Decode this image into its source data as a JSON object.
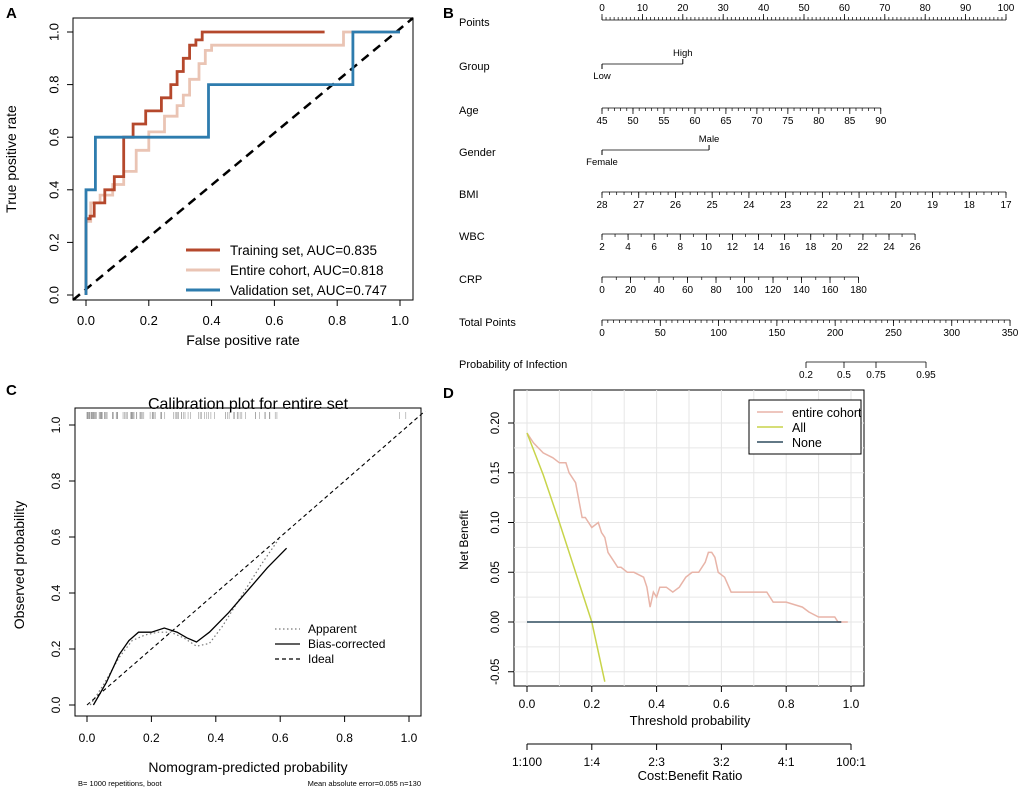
{
  "panels": {
    "a": {
      "label": "A",
      "chart_data": {
        "type": "line",
        "xlabel": "False positive rate",
        "ylabel": "True positive rate",
        "xlim": [
          0,
          1
        ],
        "ylim": [
          0,
          1
        ],
        "xticks": [
          "0.0",
          "0.2",
          "0.4",
          "0.6",
          "0.8",
          "1.0"
        ],
        "yticks": [
          "0.0",
          "0.2",
          "0.4",
          "0.6",
          "0.8",
          "1.0"
        ],
        "legend_position": "bottom-right",
        "series": [
          {
            "name": "Training set, AUC=0.835",
            "color": "#b5482c",
            "x": [
              0,
              0,
              0.013,
              0.013,
              0.026,
              0.026,
              0.06,
              0.06,
              0.09,
              0.09,
              0.12,
              0.12,
              0.15,
              0.15,
              0.19,
              0.19,
              0.24,
              0.24,
              0.27,
              0.27,
              0.29,
              0.29,
              0.31,
              0.31,
              0.33,
              0.33,
              0.35,
              0.35,
              0.37,
              0.37,
              0.39,
              0.39,
              0.76,
              0.76
            ],
            "y": [
              0,
              0.29,
              0.29,
              0.3,
              0.3,
              0.35,
              0.35,
              0.4,
              0.4,
              0.45,
              0.45,
              0.6,
              0.6,
              0.65,
              0.65,
              0.7,
              0.7,
              0.75,
              0.75,
              0.8,
              0.8,
              0.85,
              0.85,
              0.9,
              0.9,
              0.95,
              0.95,
              0.97,
              0.97,
              1.0,
              1.0,
              1.0,
              1.0,
              1.0
            ]
          },
          {
            "name": "Entire cohort, AUC=0.818",
            "color": "#eac4b4",
            "x": [
              0,
              0,
              0.015,
              0.015,
              0.045,
              0.045,
              0.085,
              0.085,
              0.12,
              0.12,
              0.16,
              0.16,
              0.2,
              0.2,
              0.25,
              0.25,
              0.29,
              0.29,
              0.31,
              0.31,
              0.33,
              0.33,
              0.36,
              0.36,
              0.38,
              0.38,
              0.4,
              0.4,
              0.82,
              0.82,
              1.0
            ],
            "y": [
              0,
              0.28,
              0.28,
              0.35,
              0.35,
              0.38,
              0.38,
              0.42,
              0.42,
              0.47,
              0.47,
              0.55,
              0.55,
              0.62,
              0.62,
              0.68,
              0.68,
              0.72,
              0.72,
              0.76,
              0.76,
              0.82,
              0.82,
              0.88,
              0.88,
              0.93,
              0.93,
              0.95,
              0.95,
              1.0,
              1.0
            ]
          },
          {
            "name": "Validation set, AUC=0.747",
            "color": "#2e7cae",
            "x": [
              0,
              0,
              0.03,
              0.03,
              0.39,
              0.39,
              0.85,
              0.85,
              1.0
            ],
            "y": [
              0,
              0.4,
              0.4,
              0.6,
              0.6,
              0.8,
              0.8,
              1.0,
              1.0
            ]
          }
        ]
      }
    },
    "b": {
      "label": "B",
      "rows": [
        {
          "name": "Points",
          "ticks": [
            "0",
            "10",
            "20",
            "30",
            "40",
            "50",
            "60",
            "70",
            "80",
            "90",
            "100"
          ]
        },
        {
          "name": "Group",
          "levels": [
            "Low",
            "High"
          ]
        },
        {
          "name": "Age",
          "ticks": [
            "45",
            "50",
            "55",
            "60",
            "65",
            "70",
            "75",
            "80",
            "85",
            "90"
          ]
        },
        {
          "name": "Gender",
          "levels": [
            "Female",
            "Male"
          ]
        },
        {
          "name": "BMI",
          "ticks": [
            "28",
            "27",
            "26",
            "25",
            "24",
            "23",
            "22",
            "21",
            "20",
            "19",
            "18",
            "17"
          ]
        },
        {
          "name": "WBC",
          "ticks": [
            "2",
            "4",
            "6",
            "8",
            "10",
            "12",
            "14",
            "16",
            "18",
            "20",
            "22",
            "24",
            "26"
          ]
        },
        {
          "name": "CRP",
          "ticks": [
            "0",
            "20",
            "40",
            "60",
            "80",
            "100",
            "120",
            "140",
            "160",
            "180"
          ]
        },
        {
          "name": "Total Points",
          "ticks": [
            "0",
            "50",
            "100",
            "150",
            "200",
            "250",
            "300",
            "350"
          ]
        },
        {
          "name": "Probability of Infection",
          "ticks": [
            "0.2",
            "0.5",
            "0.75",
            "0.95"
          ]
        }
      ]
    },
    "c": {
      "label": "C",
      "chart_data": {
        "type": "line",
        "title": "Calibration plot for entire set",
        "xlabel": "Nomogram-predicted probability",
        "ylabel": "Observed probability",
        "xlim": [
          0,
          1
        ],
        "ylim": [
          0,
          1
        ],
        "xticks": [
          "0.0",
          "0.2",
          "0.4",
          "0.6",
          "0.8",
          "1.0"
        ],
        "yticks": [
          "0.0",
          "0.2",
          "0.4",
          "0.6",
          "0.8",
          "1.0"
        ],
        "legend_position": "bottom-right",
        "series": [
          {
            "name": "Apparent",
            "style": "dotted",
            "x": [
              0.01,
              0.05,
              0.1,
              0.14,
              0.18,
              0.22,
              0.26,
              0.3,
              0.34,
              0.38,
              0.42,
              0.48,
              0.54,
              0.6
            ],
            "y": [
              0.0,
              0.07,
              0.17,
              0.23,
              0.25,
              0.26,
              0.26,
              0.24,
              0.21,
              0.22,
              0.28,
              0.39,
              0.5,
              0.6
            ]
          },
          {
            "name": "Bias-corrected",
            "style": "solid",
            "x": [
              0.02,
              0.06,
              0.1,
              0.13,
              0.16,
              0.2,
              0.24,
              0.28,
              0.31,
              0.34,
              0.38,
              0.44,
              0.5,
              0.56,
              0.62
            ],
            "y": [
              0.0,
              0.08,
              0.18,
              0.23,
              0.26,
              0.26,
              0.275,
              0.26,
              0.24,
              0.225,
              0.26,
              0.33,
              0.41,
              0.49,
              0.56
            ]
          },
          {
            "name": "Ideal",
            "style": "dashed",
            "x": [
              0,
              1.05
            ],
            "y": [
              0,
              1.05
            ]
          }
        ],
        "footnote_left": "B= 1000 repetitions, boot",
        "footnote_right": "Mean absolute error=0.055 n=130"
      }
    },
    "d": {
      "label": "D",
      "chart_data": {
        "type": "line",
        "xlabel": "Threshold probability",
        "ylabel": "Net Benefit",
        "xlim": [
          0,
          1
        ],
        "ylim": [
          -0.07,
          0.21
        ],
        "xticks": [
          "0.0",
          "0.2",
          "0.4",
          "0.6",
          "0.8",
          "1.0"
        ],
        "yticks": [
          "-0.05",
          "0.00",
          "0.05",
          "0.10",
          "0.15",
          "0.20"
        ],
        "secondary_axis_label": "Cost:Benefit Ratio",
        "secondary_ticks": [
          "1:100",
          "1:4",
          "2:3",
          "3:2",
          "4:1",
          "100:1"
        ],
        "legend_position": "top-right",
        "series": [
          {
            "name": "entire cohort",
            "color": "#e8b4a8",
            "x": [
              0.0,
              0.02,
              0.05,
              0.08,
              0.1,
              0.12,
              0.13,
              0.15,
              0.17,
              0.18,
              0.2,
              0.22,
              0.23,
              0.24,
              0.25,
              0.27,
              0.28,
              0.29,
              0.31,
              0.33,
              0.36,
              0.37,
              0.38,
              0.39,
              0.4,
              0.41,
              0.43,
              0.45,
              0.47,
              0.49,
              0.51,
              0.53,
              0.55,
              0.56,
              0.57,
              0.58,
              0.59,
              0.61,
              0.63,
              0.66,
              0.7,
              0.74,
              0.76,
              0.8,
              0.85,
              0.87,
              0.9,
              0.95,
              0.96,
              0.99
            ],
            "y": [
              0.19,
              0.18,
              0.17,
              0.165,
              0.16,
              0.16,
              0.15,
              0.14,
              0.105,
              0.105,
              0.095,
              0.1,
              0.09,
              0.085,
              0.07,
              0.06,
              0.055,
              0.055,
              0.05,
              0.05,
              0.045,
              0.035,
              0.015,
              0.03,
              0.025,
              0.035,
              0.035,
              0.03,
              0.035,
              0.045,
              0.05,
              0.05,
              0.06,
              0.07,
              0.07,
              0.065,
              0.05,
              0.045,
              0.03,
              0.03,
              0.03,
              0.03,
              0.02,
              0.02,
              0.015,
              0.01,
              0.005,
              0.005,
              0.0,
              0.0
            ]
          },
          {
            "name": "All",
            "color": "#c8d44a",
            "x": [
              0.0,
              0.05,
              0.1,
              0.15,
              0.2,
              0.24
            ],
            "y": [
              0.19,
              0.148,
              0.1,
              0.05,
              0.0,
              -0.06
            ]
          },
          {
            "name": "None",
            "color": "#2f4b5e",
            "x": [
              0.0,
              0.97
            ],
            "y": [
              0.0,
              0.0
            ]
          }
        ]
      }
    }
  }
}
